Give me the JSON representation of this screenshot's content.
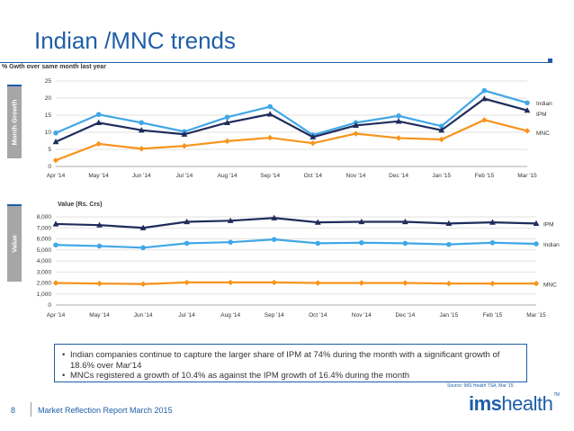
{
  "slide": {
    "title": "Indian /MNC trends",
    "page_number": "8",
    "footer_text": "Market Reflection Report March 2015",
    "source": "Source: IMS Health TSA, Mar '15",
    "logo_bold": "ims",
    "logo_light": "health",
    "logo_tm": "TM"
  },
  "side_labels": {
    "growth": "Month Growth",
    "value": "Value"
  },
  "notes": [
    "Indian companies continue to capture the larger share of IPM at 74% during the month with a significant growth of 18.6% over Mar'14",
    "MNCs registered a growth of 10.4% as against the IPM growth of 16.4% during the month"
  ],
  "colors": {
    "indian": "#41a7e6",
    "ipm": "#1f2c5c",
    "mnc": "#f7941d",
    "title": "#1f5ea8",
    "grid": "#d9d9d9"
  },
  "chart_data": [
    {
      "type": "line",
      "title": "% Gwth over same month last year",
      "categories": [
        "Apr '14",
        "May '14",
        "Jun '14",
        "Jul '14",
        "Aug '14",
        "Sep '14",
        "Oct '14",
        "Nov '14",
        "Dec '14",
        "Jan '15",
        "Feb '15",
        "Mar '15"
      ],
      "ylim": [
        0,
        25
      ],
      "yticks": [
        "0",
        "5",
        "10",
        "15",
        "20",
        "25"
      ],
      "series": [
        {
          "name": "Indian",
          "key": "indian",
          "marker": "circle",
          "values": [
            9.8,
            15.2,
            12.8,
            10.2,
            14.4,
            17.5,
            9.2,
            12.8,
            14.8,
            11.8,
            22.2,
            18.6
          ]
        },
        {
          "name": "IPM",
          "key": "ipm",
          "marker": "triangle",
          "values": [
            7.2,
            12.8,
            10.6,
            9.4,
            12.8,
            15.3,
            8.6,
            12.0,
            13.2,
            10.6,
            19.8,
            16.4
          ]
        },
        {
          "name": "MNC",
          "key": "mnc",
          "marker": "diamond",
          "values": [
            1.8,
            6.6,
            5.2,
            6.0,
            7.4,
            8.4,
            6.8,
            9.6,
            8.3,
            7.9,
            13.6,
            10.4
          ]
        }
      ]
    },
    {
      "type": "line",
      "title": "Value (Rs. Crs)",
      "categories": [
        "Apr '14",
        "May '14",
        "Jun '14",
        "Jul '14",
        "Aug '14",
        "Sep '14",
        "Oct '14",
        "Nov '14",
        "Dec '14",
        "Jan '15",
        "Feb '15",
        "Mar '15"
      ],
      "ylim": [
        0,
        8000
      ],
      "yticks": [
        "0",
        "1,000",
        "2,000",
        "3,000",
        "4,000",
        "5,000",
        "6,000",
        "7,000",
        "8,000"
      ],
      "series": [
        {
          "name": "IPM",
          "key": "ipm",
          "marker": "triangle",
          "values": [
            7350,
            7250,
            7000,
            7550,
            7650,
            7900,
            7500,
            7550,
            7550,
            7400,
            7500,
            7400
          ]
        },
        {
          "name": "Indian",
          "key": "indian",
          "marker": "circle",
          "values": [
            5450,
            5350,
            5200,
            5600,
            5700,
            5950,
            5600,
            5650,
            5600,
            5500,
            5650,
            5550
          ]
        },
        {
          "name": "MNC",
          "key": "mnc",
          "marker": "diamond",
          "values": [
            2000,
            1950,
            1900,
            2050,
            2050,
            2050,
            2000,
            2000,
            2000,
            1950,
            1950,
            1950
          ]
        }
      ]
    }
  ]
}
